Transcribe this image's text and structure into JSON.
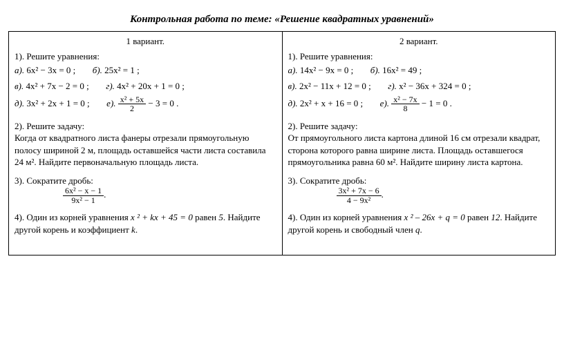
{
  "title": "Контрольная работа по теме:  «Решение квадратных уравнений»",
  "v1": {
    "head": "1 вариант.",
    "t1": "1).  Решите уравнения:",
    "a": "а).",
    "a_eq": "6x² − 3x = 0 ;",
    "b": "б).",
    "b_eq": "25x² = 1 ;",
    "c": "в).",
    "c_eq": "4x² + 7x − 2 = 0 ;",
    "d": "г).",
    "d_eq": "4x² + 20x + 1 = 0 ;",
    "e": "д).",
    "e_eq": "3x² + 2x + 1 = 0 ;",
    "f": "е).",
    "f_num": "x² + 5x",
    "f_den": "2",
    "f_tail": " − 3 = 0 .",
    "t2": "2).  Решите задачу:",
    "t2_text": "Когда от квадратного листа фанеры отрезали прямоугольную полосу шириной 2 м, площадь оставшейся части листа составила 24 м². Найдите первоначальную площадь листа.",
    "t3": "3).  Сократите дробь:",
    "t3_num": "6x² − x − 1",
    "t3_den": "9x² − 1",
    "t3_tail": ".",
    "t4a": "4).  Один из корней уравнения  ",
    "t4eq": "x ² + kx + 45 = 0",
    "t4b": "   равен  ",
    "t4root": "5",
    "t4c": ". Найдите другой корень и коэффициент ",
    "t4k": "k",
    "t4d": "."
  },
  "v2": {
    "head": "2 вариант.",
    "t1": "1).  Решите уравнения:",
    "a": "а).",
    "a_eq": "14x² − 9x = 0 ;",
    "b": "б).",
    "b_eq": "16x² = 49 ;",
    "c": "в).",
    "c_eq": "2x² − 11x + 12 = 0 ;",
    "d": "г).",
    "d_eq": "x² − 36x + 324 = 0 ;",
    "e": "д).",
    "e_eq": "2x² + x + 16 = 0 ;",
    "f": "е).",
    "f_num": "x² − 7x",
    "f_den": "8",
    "f_tail": " − 1 = 0 .",
    "t2": "2).  Решите задачу:",
    "t2_text": "От прямоугольного листа картона длиной 16 см отрезали квадрат, сторона которого равна ширине листа. Площадь оставшегося прямоугольника равна 60 м². Найдите ширину листа картона.",
    "t3": "3).  Сократите дробь:",
    "t3_num": "3x² + 7x − 6",
    "t3_den": "4 − 9x²",
    "t3_tail": ".",
    "t4a": "4).  Один из корней уравнения  ",
    "t4eq": "x ² – 26x + q = 0",
    "t4b": "   равен  ",
    "t4root": "12",
    "t4c": ". Найдите другой корень и свободный член  ",
    "t4k": "q",
    "t4d": "."
  }
}
